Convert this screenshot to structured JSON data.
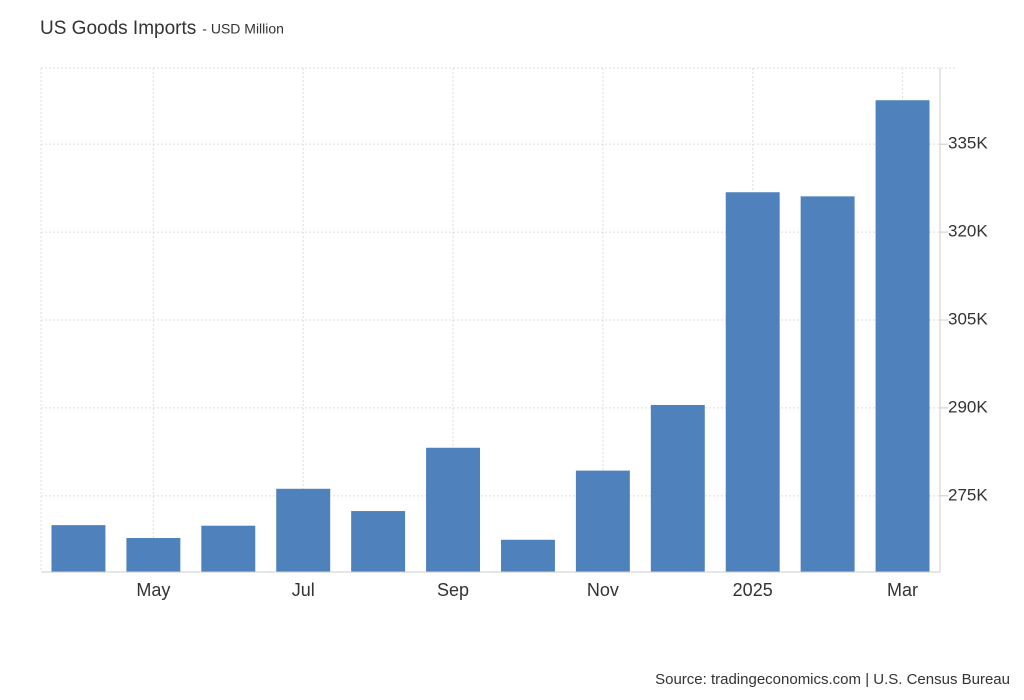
{
  "chart_data": {
    "type": "bar",
    "title": "US Goods Imports",
    "subtitle": "- USD Million",
    "source": "Source: tradingeconomics.com | U.S. Census Bureau",
    "categories": [
      null,
      "May",
      null,
      "Jul",
      null,
      "Sep",
      null,
      "Nov",
      null,
      "2025",
      null,
      "Mar"
    ],
    "values": [
      270000,
      267800,
      269900,
      276200,
      272400,
      283200,
      267500,
      279300,
      290500,
      326800,
      326100,
      342500
    ],
    "color": "#4f81bd",
    "ylim": [
      262000,
      348000
    ],
    "yticks": [
      {
        "value": 275000,
        "label": "275K"
      },
      {
        "value": 290000,
        "label": "290K"
      },
      {
        "value": 305000,
        "label": "305K"
      },
      {
        "value": 320000,
        "label": "320K"
      },
      {
        "value": 335000,
        "label": "335K"
      }
    ],
    "grid": true
  }
}
